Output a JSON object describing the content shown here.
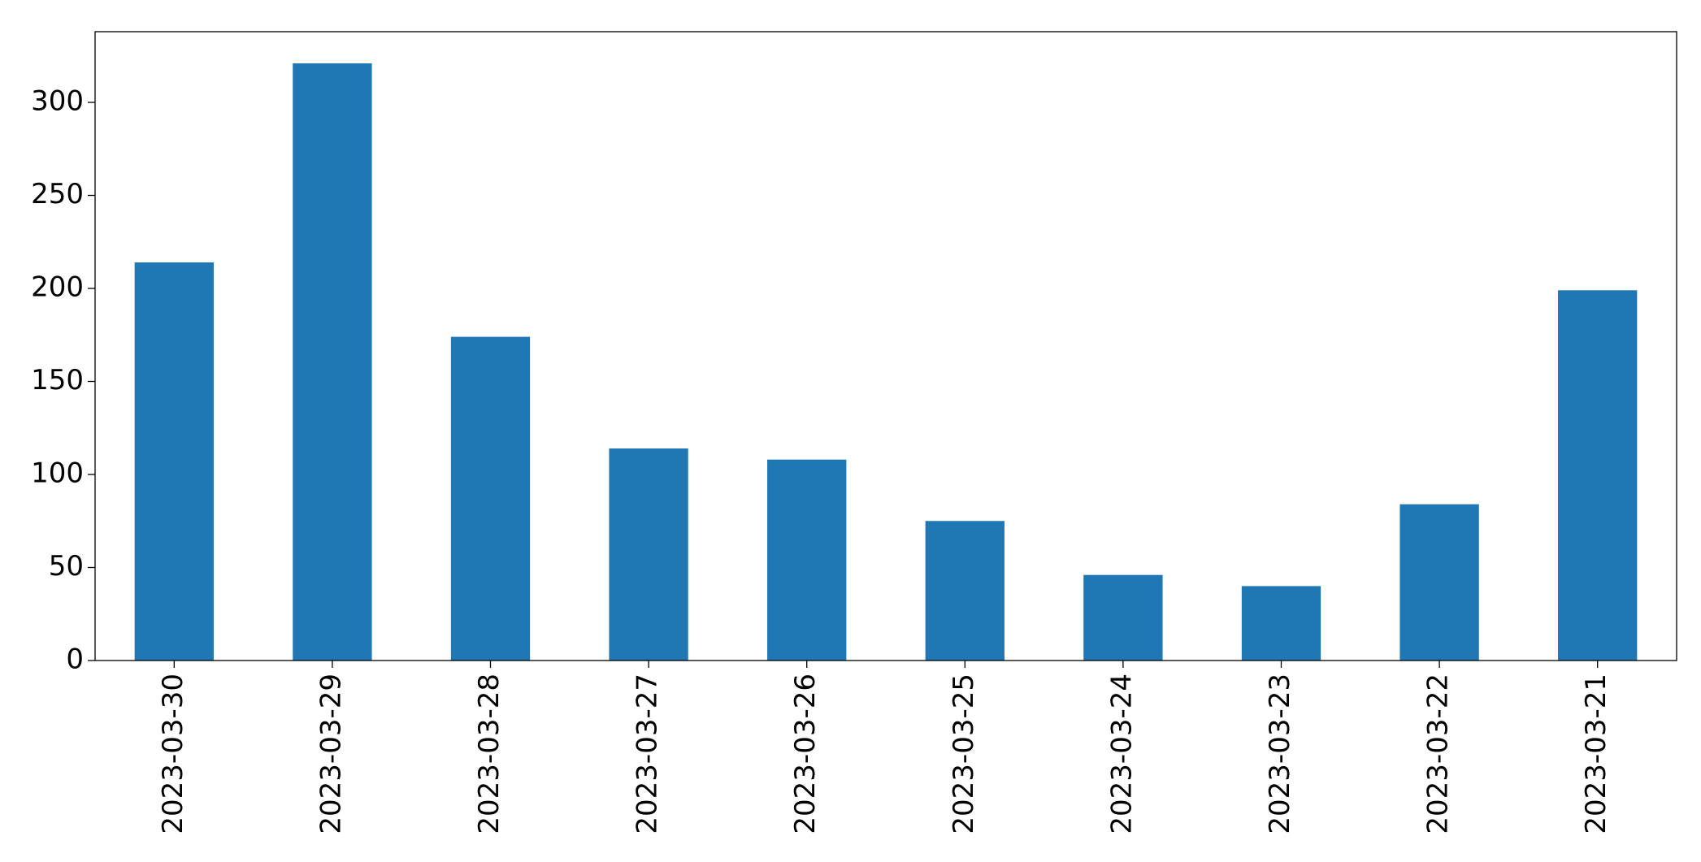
{
  "chart_data": {
    "type": "bar",
    "categories": [
      "2023-03-30",
      "2023-03-29",
      "2023-03-28",
      "2023-03-27",
      "2023-03-26",
      "2023-03-25",
      "2023-03-24",
      "2023-03-23",
      "2023-03-22",
      "2023-03-21"
    ],
    "values": [
      214,
      321,
      174,
      114,
      108,
      75,
      46,
      40,
      84,
      199
    ],
    "color": "#1f77b4",
    "ylim": [
      0,
      338
    ],
    "yticks": [
      0,
      50,
      100,
      150,
      200,
      250,
      300
    ],
    "grid": false
  }
}
